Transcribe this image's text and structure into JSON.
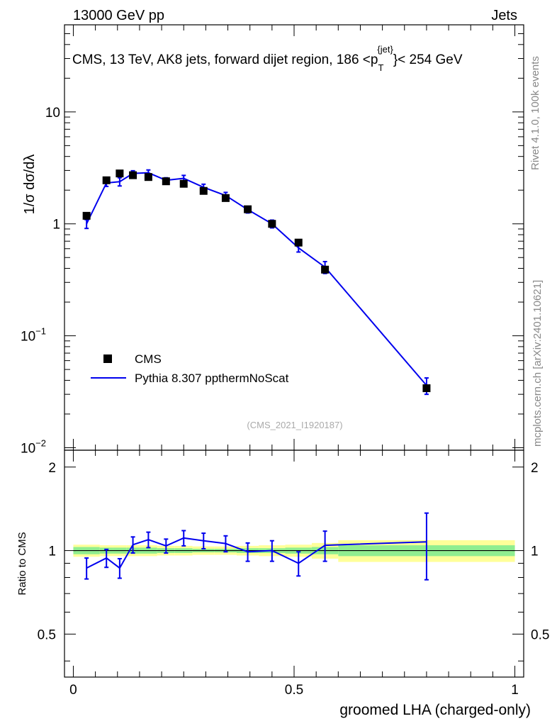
{
  "header": {
    "left_label": "13000 GeV pp",
    "right_label": "Jets"
  },
  "side_labels": {
    "rivet": "Rivet 4.1.0,  100k events",
    "mcplots": "mcplots.cern.ch [arXiv:2401.10621]"
  },
  "chart_data": {
    "type": "scatter",
    "title": "CMS, 13 TeV, AK8 jets, forward dijet region, 186 <p",
    "title_sub": "T",
    "title_sup": "{jet}",
    "title_tail": "}< 254 GeV",
    "analysis_id": "(CMS_2021_I1920187)",
    "ylabel_main": "1/σ dσ/dλ",
    "ylabel_ratio": "Ratio to CMS",
    "xlabel": "groomed LHA (charged-only)",
    "xlim": [
      -0.02,
      1.02
    ],
    "ylim_main": [
      0.0095,
      60
    ],
    "ylim_ratio": [
      0.35,
      2.3
    ],
    "main_yticks": [
      {
        "value": 0.01,
        "base": "10",
        "exp": "−2"
      },
      {
        "value": 0.1,
        "base": "10",
        "exp": "−1"
      },
      {
        "value": 1,
        "base": "1",
        "exp": ""
      },
      {
        "value": 10,
        "base": "10",
        "exp": ""
      }
    ],
    "ratio_yticks": [
      {
        "value": 0.5,
        "label": "0.5"
      },
      {
        "value": 1,
        "label": "1"
      },
      {
        "value": 2,
        "label": "2"
      }
    ],
    "xticks": [
      {
        "value": 0,
        "label": "0"
      },
      {
        "value": 0.5,
        "label": "0.5"
      },
      {
        "value": 1,
        "label": "1"
      }
    ],
    "legend": {
      "position": "bottom-left",
      "entries": [
        "CMS",
        "Pythia 8.307 ppthermNoScat"
      ]
    },
    "series": [
      {
        "name": "CMS",
        "marker": "square",
        "color": "#000000",
        "x": [
          0.03,
          0.075,
          0.105,
          0.135,
          0.17,
          0.21,
          0.25,
          0.295,
          0.345,
          0.395,
          0.45,
          0.51,
          0.57,
          0.8
        ],
        "y": [
          1.18,
          2.45,
          2.82,
          2.72,
          2.62,
          2.4,
          2.28,
          1.97,
          1.7,
          1.35,
          1.0,
          0.68,
          0.39,
          0.034
        ]
      },
      {
        "name": "Pythia 8.307 ppthermNoScat",
        "color": "#0000ee",
        "x": [
          0.03,
          0.075,
          0.105,
          0.135,
          0.17,
          0.21,
          0.25,
          0.295,
          0.345,
          0.395,
          0.45,
          0.51,
          0.57,
          0.8
        ],
        "y": [
          1.0,
          2.32,
          2.38,
          2.82,
          2.86,
          2.45,
          2.55,
          2.12,
          1.79,
          1.34,
          1.0,
          0.61,
          0.41,
          0.036
        ],
        "yerr": [
          0.09,
          0.16,
          0.2,
          0.16,
          0.17,
          0.13,
          0.16,
          0.14,
          0.12,
          0.09,
          0.08,
          0.05,
          0.05,
          0.006
        ]
      }
    ],
    "ratio": {
      "x": [
        0.03,
        0.075,
        0.105,
        0.135,
        0.17,
        0.21,
        0.25,
        0.295,
        0.345,
        0.395,
        0.45,
        0.51,
        0.57,
        0.8
      ],
      "y": [
        0.865,
        0.94,
        0.865,
        1.05,
        1.095,
        1.04,
        1.11,
        1.085,
        1.06,
        0.99,
        1.0,
        0.9,
        1.045,
        1.075
      ],
      "yerr": [
        0.075,
        0.07,
        0.07,
        0.07,
        0.07,
        0.06,
        0.07,
        0.07,
        0.07,
        0.075,
        0.085,
        0.09,
        0.13,
        0.29
      ],
      "bands": [
        {
          "x0": 0.0,
          "x1": 0.06,
          "stat": 0.03,
          "total": 0.05
        },
        {
          "x0": 0.06,
          "x1": 0.09,
          "stat": 0.025,
          "total": 0.045
        },
        {
          "x0": 0.09,
          "x1": 0.12,
          "stat": 0.025,
          "total": 0.045
        },
        {
          "x0": 0.12,
          "x1": 0.15,
          "stat": 0.025,
          "total": 0.045
        },
        {
          "x0": 0.15,
          "x1": 0.19,
          "stat": 0.025,
          "total": 0.045
        },
        {
          "x0": 0.19,
          "x1": 0.23,
          "stat": 0.02,
          "total": 0.04
        },
        {
          "x0": 0.23,
          "x1": 0.27,
          "stat": 0.02,
          "total": 0.04
        },
        {
          "x0": 0.27,
          "x1": 0.32,
          "stat": 0.015,
          "total": 0.035
        },
        {
          "x0": 0.32,
          "x1": 0.37,
          "stat": 0.015,
          "total": 0.035
        },
        {
          "x0": 0.37,
          "x1": 0.42,
          "stat": 0.02,
          "total": 0.04
        },
        {
          "x0": 0.42,
          "x1": 0.48,
          "stat": 0.02,
          "total": 0.045
        },
        {
          "x0": 0.48,
          "x1": 0.54,
          "stat": 0.025,
          "total": 0.05
        },
        {
          "x0": 0.54,
          "x1": 0.6,
          "stat": 0.03,
          "total": 0.065
        },
        {
          "x0": 0.6,
          "x1": 1.0,
          "stat": 0.045,
          "total": 0.09
        }
      ]
    },
    "colors": {
      "data": "#000000",
      "mc": "#0000ee",
      "stat_band": "#90ee90",
      "total_band": "#ffff99",
      "side_text": "#888888"
    }
  }
}
